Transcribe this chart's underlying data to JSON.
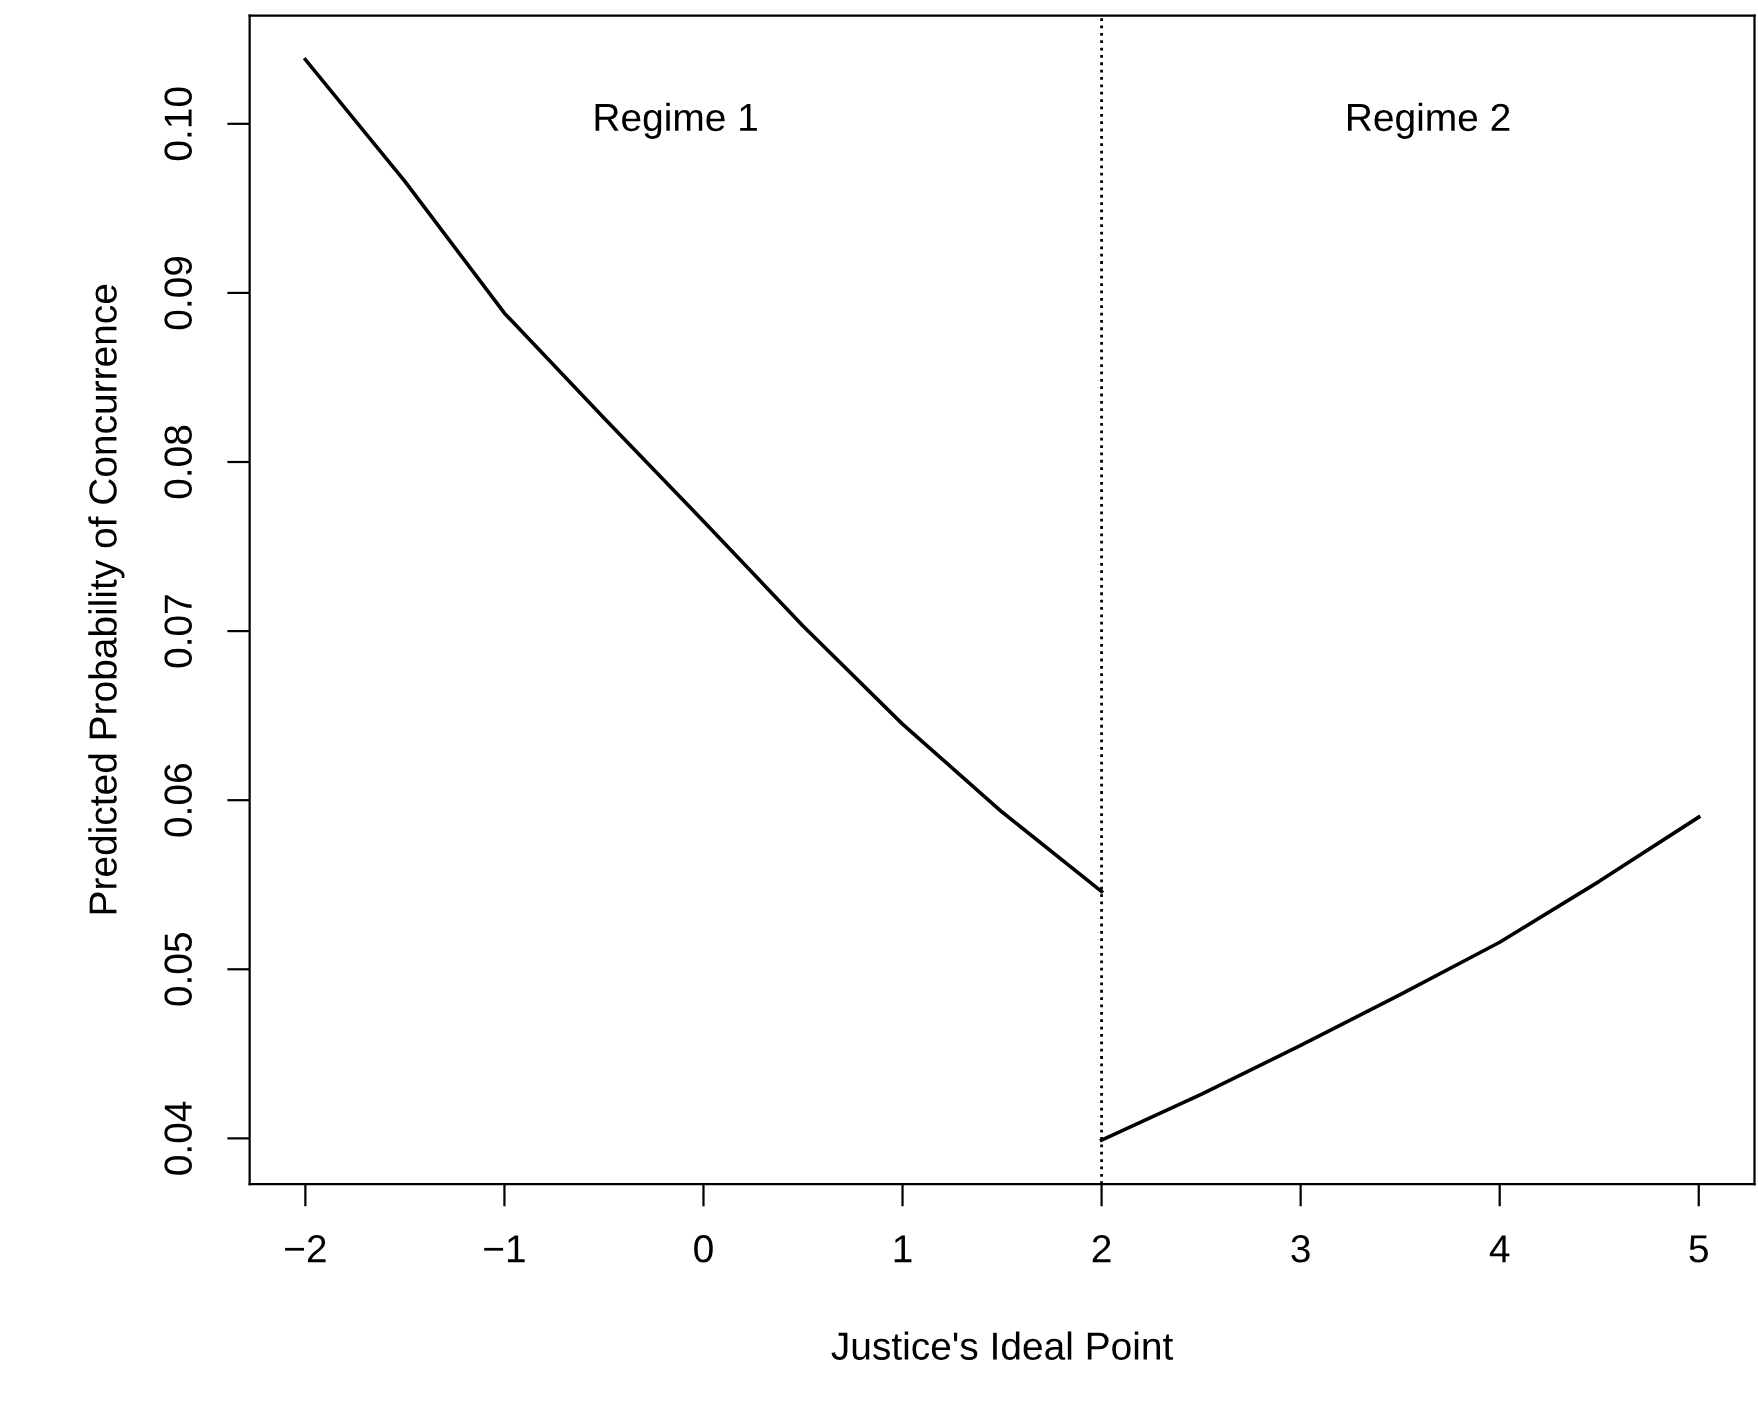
{
  "chart_data": {
    "type": "line",
    "xlabel": "Justice's Ideal Point",
    "ylabel": "Predicted Probability of Concurrence",
    "series": [
      {
        "color": "#000000",
        "x": [
          -2,
          -1.5,
          -1,
          -0.5,
          0,
          0.5,
          1,
          1.5,
          2
        ],
        "values": [
          0.1038,
          0.0966,
          0.0888,
          0.0826,
          0.0765,
          0.0703,
          0.0645,
          0.0593,
          0.0546
        ]
      },
      {
        "color": "#000000",
        "x": [
          2,
          2.5,
          3,
          3.5,
          4,
          4.5,
          5
        ],
        "values": [
          0.0399,
          0.0426,
          0.0455,
          0.0485,
          0.0516,
          0.0552,
          0.059
        ]
      }
    ],
    "xlim": [
      -2.28,
      5.28
    ],
    "ylim": [
      0.0373,
      0.1064
    ],
    "xticks": [
      {
        "value": -2,
        "label": "−2"
      },
      {
        "value": -1,
        "label": "−1"
      },
      0,
      1,
      2,
      3,
      4,
      5
    ],
    "yticks": [
      {
        "value": 0.04,
        "label": "0.04"
      },
      {
        "value": 0.05,
        "label": "0.05"
      },
      {
        "value": 0.06,
        "label": "0.06"
      },
      {
        "value": 0.07,
        "label": "0.07"
      },
      {
        "value": 0.08,
        "label": "0.08"
      },
      {
        "value": 0.09,
        "label": "0.09"
      },
      {
        "value": 0.1,
        "label": "0.10"
      }
    ],
    "ref_lines": [
      {
        "axis": "x",
        "value": 2,
        "color": "#000000",
        "line_style": "dotted"
      }
    ],
    "annotations": [
      "Regime 1",
      "Regime 2"
    ],
    "grid": false,
    "legend": false,
    "marker": "none",
    "line_style": "solid"
  }
}
